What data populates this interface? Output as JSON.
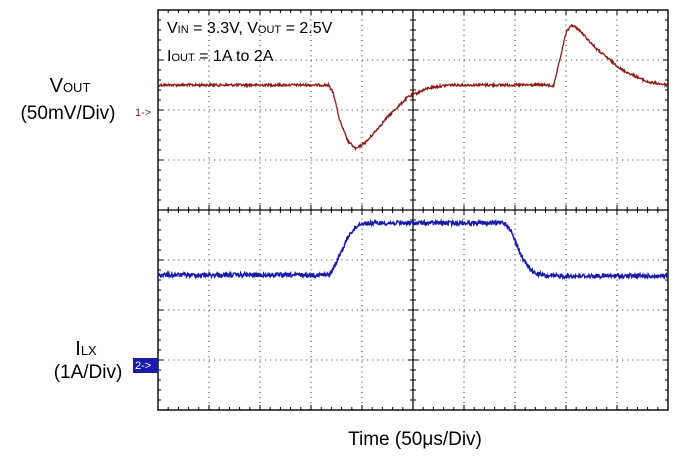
{
  "chart_data": {
    "type": "line",
    "conditions": {
      "line1": {
        "v": "V",
        "in_sub": "IN",
        "in_val": " = 3.3V, ",
        "v2": "V",
        "out_sub": "OUT",
        "out_val": " = 2.5V"
      },
      "line2": {
        "i": "I",
        "out_sub": "OUT",
        "rest": " = 1A to 2A"
      }
    },
    "xlabel": "Time  (50μs/Div)",
    "x_divisions": 10,
    "y_divisions": 8,
    "x_unit": "μs",
    "x_per_div": 50,
    "x_range": [
      0,
      500
    ],
    "channels": [
      {
        "id": 1,
        "marker": "1->",
        "label_main": "V",
        "label_sub": "OUT",
        "label_scale": "(50mV/Div)",
        "color": "#8b1a1a",
        "marker_fill": "none",
        "marker_text_color": "#8b1a1a",
        "scale_per_div": 50,
        "unit": "mV",
        "points": [
          [
            0,
            0
          ],
          [
            167,
            0
          ],
          [
            172,
            -8
          ],
          [
            178,
            -35
          ],
          [
            186,
            -56
          ],
          [
            194,
            -64
          ],
          [
            205,
            -56
          ],
          [
            225,
            -32
          ],
          [
            245,
            -12
          ],
          [
            265,
            -3
          ],
          [
            285,
            0
          ],
          [
            360,
            0
          ],
          [
            380,
            0
          ],
          [
            388,
            -1
          ],
          [
            395,
            30
          ],
          [
            400,
            52
          ],
          [
            405,
            60
          ],
          [
            412,
            56
          ],
          [
            430,
            36
          ],
          [
            455,
            15
          ],
          [
            480,
            3
          ],
          [
            500,
            0
          ]
        ]
      },
      {
        "id": 2,
        "marker": "2->",
        "label_main": "I",
        "label_sub": "LX",
        "label_scale": "(1A/Div)",
        "color": "#1a1aa8",
        "marker_fill": "#1a1aa8",
        "marker_text_color": "#ffffff",
        "scale_per_div": 1,
        "unit": "A",
        "points": [
          [
            0,
            0.72
          ],
          [
            168,
            0.72
          ],
          [
            172,
            0.85
          ],
          [
            188,
            1.55
          ],
          [
            198,
            1.75
          ],
          [
            215,
            1.76
          ],
          [
            340,
            1.76
          ],
          [
            345,
            1.65
          ],
          [
            358,
            1.02
          ],
          [
            368,
            0.77
          ],
          [
            380,
            0.7
          ],
          [
            500,
            0.7
          ]
        ]
      }
    ]
  }
}
